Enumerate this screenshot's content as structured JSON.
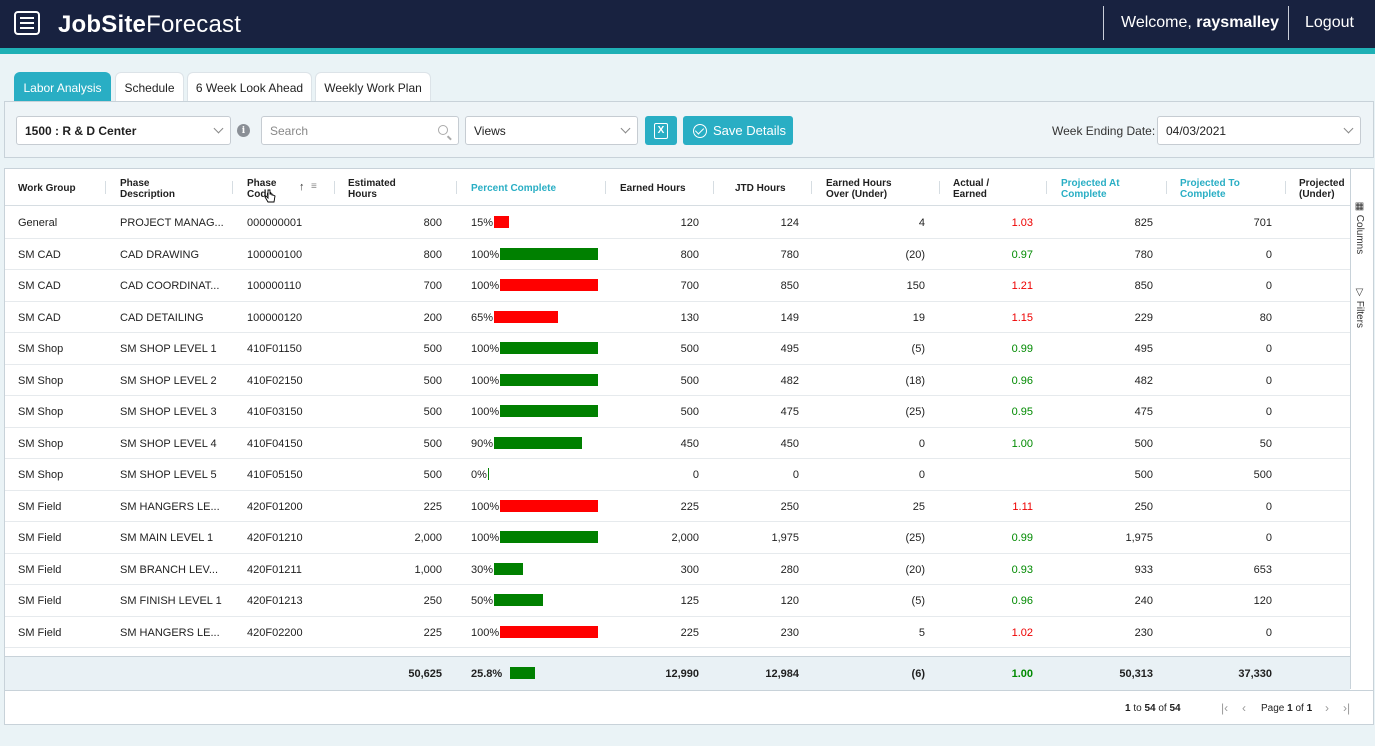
{
  "header": {
    "logo_bold": "JobSite",
    "logo_thin": "Forecast",
    "welcome_prefix": "Welcome, ",
    "username": "raysmalley",
    "logout": "Logout",
    "accent_color": "#1fb0b5",
    "bar_color": "#182240"
  },
  "tabs": [
    {
      "label": "Labor Analysis",
      "active": true
    },
    {
      "label": "Schedule"
    },
    {
      "label": "6 Week Look Ahead"
    },
    {
      "label": "Weekly Work Plan"
    }
  ],
  "toolbar": {
    "project_select": "1500 : R & D Center",
    "search_placeholder": "Search",
    "views_select": "Views",
    "excel_icon": "excel-icon",
    "save_label": "Save Details",
    "week_ending_label": "Week Ending Date:",
    "week_ending_value": "04/03/2021"
  },
  "columns": {
    "work_group": "Work Group",
    "phase_desc_1": "Phase",
    "phase_desc_2": "Description",
    "phase_code_1": "Phase",
    "phase_code_2": "Code",
    "est_1": "Estimated",
    "est_2": "Hours",
    "pct": "Percent Complete",
    "earned": "Earned Hours",
    "jtd": "JTD Hours",
    "over_1": "Earned Hours",
    "over_2": "Over (Under)",
    "ae_1": "Actual /",
    "ae_2": "Earned",
    "pac_1": "Projected At",
    "pac_2": "Complete",
    "ptc_1": "Projected To",
    "ptc_2": "Complete",
    "pu_1": "Projected",
    "pu_2": "(Under)"
  },
  "rows": [
    {
      "group": "General",
      "desc": "PROJECT MANAG...",
      "code": "000000001",
      "est": "800",
      "pct_label": "15%",
      "pct": 15,
      "bar": "red",
      "earned": "120",
      "jtd": "124",
      "over": "4",
      "ae": "1.03",
      "ae_color": "red",
      "pac": "825",
      "ptc": "701"
    },
    {
      "group": "SM CAD",
      "desc": "CAD DRAWING",
      "code": "100000100",
      "est": "800",
      "pct_label": "100%",
      "pct": 100,
      "bar": "green",
      "earned": "800",
      "jtd": "780",
      "over": "(20)",
      "ae": "0.97",
      "ae_color": "green",
      "pac": "780",
      "ptc": "0"
    },
    {
      "group": "SM CAD",
      "desc": "CAD COORDINAT...",
      "code": "100000110",
      "est": "700",
      "pct_label": "100%",
      "pct": 100,
      "bar": "red",
      "earned": "700",
      "jtd": "850",
      "over": "150",
      "ae": "1.21",
      "ae_color": "red",
      "pac": "850",
      "ptc": "0"
    },
    {
      "group": "SM CAD",
      "desc": "CAD DETAILING",
      "code": "100000120",
      "est": "200",
      "pct_label": "65%",
      "pct": 65,
      "bar": "red",
      "earned": "130",
      "jtd": "149",
      "over": "19",
      "ae": "1.15",
      "ae_color": "red",
      "pac": "229",
      "ptc": "80"
    },
    {
      "group": "SM Shop",
      "desc": "SM SHOP LEVEL 1",
      "code": "410F01150",
      "est": "500",
      "pct_label": "100%",
      "pct": 100,
      "bar": "green",
      "earned": "500",
      "jtd": "495",
      "over": "(5)",
      "ae": "0.99",
      "ae_color": "green",
      "pac": "495",
      "ptc": "0"
    },
    {
      "group": "SM Shop",
      "desc": "SM SHOP LEVEL 2",
      "code": "410F02150",
      "est": "500",
      "pct_label": "100%",
      "pct": 100,
      "bar": "green",
      "earned": "500",
      "jtd": "482",
      "over": "(18)",
      "ae": "0.96",
      "ae_color": "green",
      "pac": "482",
      "ptc": "0"
    },
    {
      "group": "SM Shop",
      "desc": "SM SHOP LEVEL 3",
      "code": "410F03150",
      "est": "500",
      "pct_label": "100%",
      "pct": 100,
      "bar": "green",
      "earned": "500",
      "jtd": "475",
      "over": "(25)",
      "ae": "0.95",
      "ae_color": "green",
      "pac": "475",
      "ptc": "0"
    },
    {
      "group": "SM Shop",
      "desc": "SM SHOP LEVEL 4",
      "code": "410F04150",
      "est": "500",
      "pct_label": "90%",
      "pct": 90,
      "bar": "green",
      "earned": "450",
      "jtd": "450",
      "over": "0",
      "ae": "1.00",
      "ae_color": "green",
      "pac": "500",
      "ptc": "50"
    },
    {
      "group": "SM Shop",
      "desc": "SM SHOP LEVEL 5",
      "code": "410F05150",
      "est": "500",
      "pct_label": "0%",
      "pct": 0,
      "bar": "green",
      "earned": "0",
      "jtd": "0",
      "over": "0",
      "ae": "",
      "ae_color": "green",
      "pac": "500",
      "ptc": "500"
    },
    {
      "group": "SM Field",
      "desc": "SM HANGERS LE...",
      "code": "420F01200",
      "est": "225",
      "pct_label": "100%",
      "pct": 100,
      "bar": "red",
      "earned": "225",
      "jtd": "250",
      "over": "25",
      "ae": "1.11",
      "ae_color": "red",
      "pac": "250",
      "ptc": "0"
    },
    {
      "group": "SM Field",
      "desc": "SM MAIN LEVEL 1",
      "code": "420F01210",
      "est": "2,000",
      "pct_label": "100%",
      "pct": 100,
      "bar": "green",
      "earned": "2,000",
      "jtd": "1,975",
      "over": "(25)",
      "ae": "0.99",
      "ae_color": "green",
      "pac": "1,975",
      "ptc": "0"
    },
    {
      "group": "SM Field",
      "desc": "SM BRANCH LEV...",
      "code": "420F01211",
      "est": "1,000",
      "pct_label": "30%",
      "pct": 30,
      "bar": "green",
      "earned": "300",
      "jtd": "280",
      "over": "(20)",
      "ae": "0.93",
      "ae_color": "green",
      "pac": "933",
      "ptc": "653"
    },
    {
      "group": "SM Field",
      "desc": "SM FINISH LEVEL 1",
      "code": "420F01213",
      "est": "250",
      "pct_label": "50%",
      "pct": 50,
      "bar": "green",
      "earned": "125",
      "jtd": "120",
      "over": "(5)",
      "ae": "0.96",
      "ae_color": "green",
      "pac": "240",
      "ptc": "120"
    },
    {
      "group": "SM Field",
      "desc": "SM HANGERS LE...",
      "code": "420F02200",
      "est": "225",
      "pct_label": "100%",
      "pct": 100,
      "bar": "red",
      "earned": "225",
      "jtd": "230",
      "over": "5",
      "ae": "1.02",
      "ae_color": "red",
      "pac": "230",
      "ptc": "0"
    }
  ],
  "totals": {
    "est": "50,625",
    "pct_label": "25.8%",
    "pct": 25.8,
    "earned": "12,990",
    "jtd": "12,984",
    "over": "(6)",
    "ae": "1.00",
    "pac": "50,313",
    "ptc": "37,330"
  },
  "pager": {
    "from": "1",
    "to_word": " to ",
    "to": "54",
    "of_word": " of ",
    "total": "54",
    "page_word": "Page ",
    "page": "1",
    "page_of": " of ",
    "pages": "1"
  },
  "side": {
    "columns": "Columns",
    "filters": "Filters"
  },
  "colors": {
    "teal": "#29aec4",
    "bar_red": "#ff0000",
    "bar_green": "#008000"
  }
}
